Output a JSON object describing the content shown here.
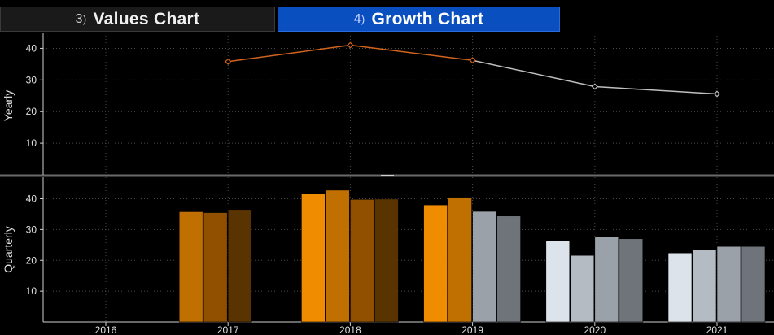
{
  "tabs": [
    {
      "num": "3",
      "label": "Values Chart",
      "active": false
    },
    {
      "num": "4",
      "label": "Growth Chart",
      "active": true
    }
  ],
  "chart_data": [
    {
      "type": "line",
      "ylabel": "Yearly",
      "ylim": [
        0,
        45
      ],
      "yticks": [
        10,
        20,
        30,
        40
      ],
      "grid": true,
      "x": [
        "2017",
        "2018",
        "2019",
        "2020",
        "2021"
      ],
      "series": [
        {
          "values": [
            35.8,
            41.0,
            36.2,
            27.9,
            25.6
          ],
          "colors": [
            "#d2631f",
            "#d2631f",
            "#d2631f",
            "#bfbfbf",
            "#bfbfbf"
          ]
        }
      ]
    },
    {
      "type": "bar",
      "ylabel": "Quarterly",
      "ylim": [
        0,
        47
      ],
      "yticks": [
        10,
        20,
        30,
        40
      ],
      "grid": true,
      "categories": [
        "2016",
        "2017",
        "2018",
        "2019",
        "2020",
        "2021"
      ],
      "groups": [
        {
          "year": "2016",
          "values": [],
          "colors": []
        },
        {
          "year": "2017",
          "values": [
            35.8,
            35.5,
            36.5
          ],
          "colors": [
            "#c07000",
            "#905000",
            "#5a3400"
          ]
        },
        {
          "year": "2018",
          "values": [
            41.7,
            42.8,
            39.8,
            39.9
          ],
          "colors": [
            "#f08c00",
            "#c07000",
            "#905000",
            "#5a3400"
          ]
        },
        {
          "year": "2019",
          "values": [
            38.0,
            40.5,
            35.9,
            34.4
          ],
          "colors": [
            "#f08c00",
            "#c07000",
            "#9aa1a8",
            "#6e747a"
          ]
        },
        {
          "year": "2020",
          "values": [
            26.4,
            21.6,
            27.7,
            27.0
          ],
          "colors": [
            "#dde3ea",
            "#b4bbc2",
            "#9aa1a8",
            "#6e747a"
          ]
        },
        {
          "year": "2021",
          "values": [
            22.4,
            23.5,
            24.5,
            24.5
          ],
          "colors": [
            "#dde3ea",
            "#b4bbc2",
            "#9aa1a8",
            "#6e747a"
          ]
        }
      ]
    }
  ]
}
